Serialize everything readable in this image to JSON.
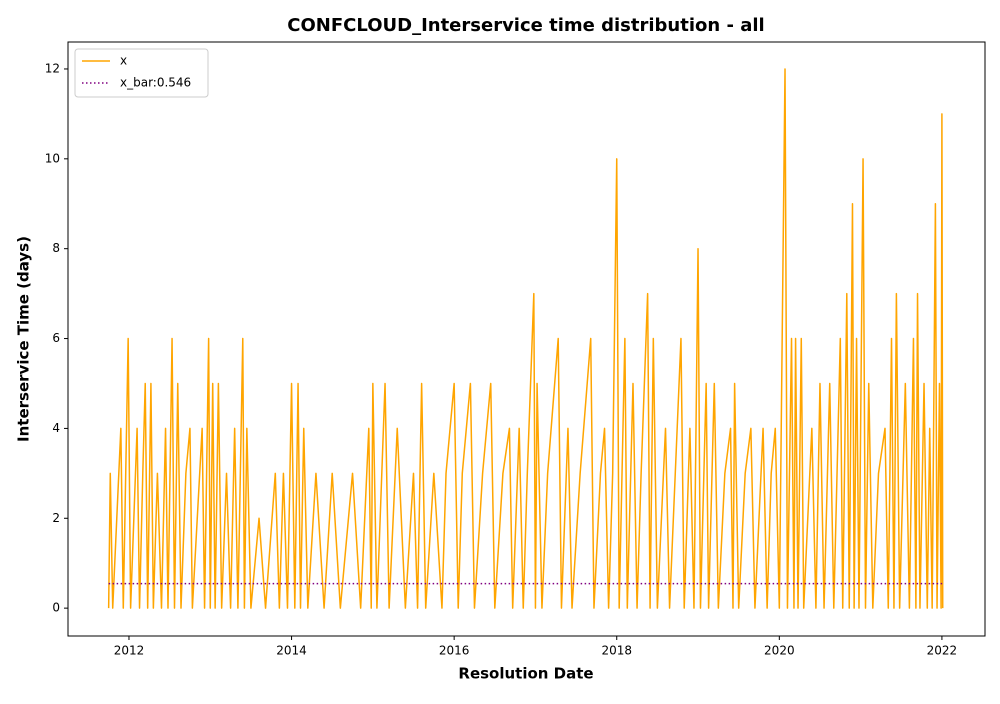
{
  "chart_data": {
    "type": "line",
    "title": "CONFCLOUD_Interservice time distribution - all",
    "xlabel": "Resolution Date",
    "ylabel": "Interservice Time (days)",
    "series": [
      {
        "name": "x",
        "color": "#ffa500",
        "linestyle": "solid",
        "x": [
          2011.75,
          2011.77,
          2011.8,
          2011.85,
          2011.9,
          2011.93,
          2011.96,
          2011.99,
          2012.02,
          2012.06,
          2012.1,
          2012.13,
          2012.17,
          2012.2,
          2012.23,
          2012.27,
          2012.3,
          2012.35,
          2012.4,
          2012.45,
          2012.48,
          2012.53,
          2012.56,
          2012.6,
          2012.64,
          2012.7,
          2012.75,
          2012.78,
          2012.84,
          2012.9,
          2012.93,
          2012.98,
          2013.0,
          2013.03,
          2013.06,
          2013.1,
          2013.14,
          2013.2,
          2013.25,
          2013.3,
          2013.34,
          2013.4,
          2013.42,
          2013.45,
          2013.5,
          2013.6,
          2013.68,
          2013.8,
          2013.85,
          2013.9,
          2013.95,
          2014.0,
          2014.04,
          2014.08,
          2014.11,
          2014.15,
          2014.2,
          2014.3,
          2014.4,
          2014.5,
          2014.6,
          2014.75,
          2014.85,
          2014.95,
          2014.98,
          2015.0,
          2015.05,
          2015.15,
          2015.2,
          2015.3,
          2015.4,
          2015.5,
          2015.55,
          2015.6,
          2015.65,
          2015.75,
          2015.85,
          2015.9,
          2016.0,
          2016.05,
          2016.1,
          2016.2,
          2016.25,
          2016.35,
          2016.45,
          2016.5,
          2016.6,
          2016.68,
          2016.72,
          2016.8,
          2016.85,
          2016.9,
          2016.98,
          2017.0,
          2017.02,
          2017.08,
          2017.15,
          2017.28,
          2017.32,
          2017.4,
          2017.45,
          2017.55,
          2017.68,
          2017.72,
          2017.8,
          2017.85,
          2017.9,
          2017.95,
          2018.0,
          2018.03,
          2018.1,
          2018.13,
          2018.2,
          2018.25,
          2018.3,
          2018.38,
          2018.41,
          2018.45,
          2018.5,
          2018.6,
          2018.65,
          2018.72,
          2018.79,
          2018.83,
          2018.9,
          2018.95,
          2019.0,
          2019.03,
          2019.1,
          2019.13,
          2019.2,
          2019.25,
          2019.33,
          2019.4,
          2019.43,
          2019.45,
          2019.5,
          2019.58,
          2019.65,
          2019.7,
          2019.8,
          2019.85,
          2019.9,
          2019.95,
          2020.0,
          2020.07,
          2020.1,
          2020.15,
          2020.18,
          2020.2,
          2020.23,
          2020.27,
          2020.3,
          2020.4,
          2020.45,
          2020.5,
          2020.55,
          2020.62,
          2020.67,
          2020.75,
          2020.78,
          2020.83,
          2020.86,
          2020.9,
          2020.92,
          2020.95,
          2020.98,
          2021.03,
          2021.06,
          2021.1,
          2021.15,
          2021.22,
          2021.3,
          2021.34,
          2021.38,
          2021.41,
          2021.44,
          2021.48,
          2021.55,
          2021.6,
          2021.65,
          2021.68,
          2021.7,
          2021.73,
          2021.78,
          2021.82,
          2021.85,
          2021.88,
          2021.92,
          2021.94,
          2021.97,
          2021.99,
          2022.0,
          2022.01
        ],
        "values": [
          0,
          3,
          0,
          2,
          4,
          0,
          3,
          6,
          0,
          2,
          4,
          0,
          3,
          5,
          0,
          5,
          0,
          3,
          0,
          4,
          0,
          6,
          0,
          5,
          0,
          3,
          4,
          0,
          2,
          4,
          0,
          6,
          0,
          5,
          0,
          5,
          0,
          3,
          0,
          4,
          0,
          6,
          0,
          4,
          0,
          2,
          0,
          3,
          0,
          3,
          0,
          5,
          0,
          5,
          0,
          4,
          0,
          3,
          0,
          3,
          0,
          3,
          0,
          4,
          0,
          5,
          0,
          5,
          0,
          4,
          0,
          3,
          0,
          5,
          0,
          3,
          0,
          3,
          5,
          0,
          3,
          5,
          0,
          3,
          5,
          0,
          3,
          4,
          0,
          4,
          0,
          3,
          7,
          0,
          5,
          0,
          3,
          6,
          0,
          4,
          0,
          3,
          6,
          0,
          3,
          4,
          0,
          3,
          10,
          0,
          6,
          0,
          5,
          0,
          3,
          7,
          0,
          6,
          0,
          4,
          0,
          3,
          6,
          0,
          4,
          0,
          8,
          0,
          5,
          0,
          5,
          0,
          3,
          4,
          0,
          5,
          0,
          3,
          4,
          0,
          4,
          0,
          3,
          4,
          0,
          12,
          0,
          6,
          0,
          6,
          0,
          6,
          0,
          4,
          0,
          5,
          0,
          5,
          0,
          6,
          0,
          7,
          0,
          9,
          0,
          6,
          0,
          10,
          0,
          5,
          0,
          3,
          4,
          0,
          6,
          0,
          7,
          0,
          5,
          0,
          6,
          0,
          7,
          0,
          5,
          0,
          4,
          0,
          9,
          0,
          5,
          0,
          11,
          0
        ]
      },
      {
        "name": "x_bar:0.546",
        "color": "#800080",
        "linestyle": "dotted",
        "x": [
          2011.75,
          2022.01
        ],
        "values": [
          0.546,
          0.546
        ]
      }
    ],
    "xlim": [
      2011.25,
      2022.53
    ],
    "xticks": [
      2012,
      2014,
      2016,
      2018,
      2020,
      2022
    ],
    "ylim": [
      -0.62,
      12.6
    ],
    "yticks": [
      0,
      2,
      4,
      6,
      8,
      10,
      12
    ],
    "grid": false,
    "legend": "upper left"
  }
}
